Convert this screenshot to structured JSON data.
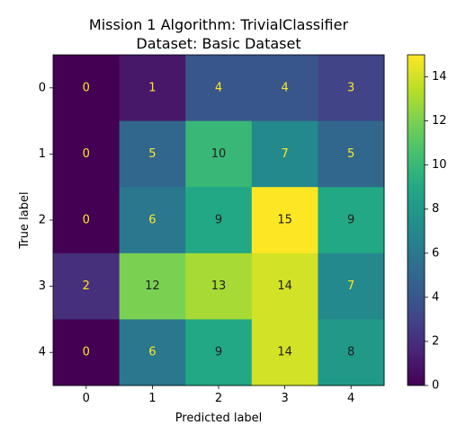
{
  "chart_data": {
    "type": "heatmap",
    "title_line1": "Mission 1 Algorithm: TrivialClassifier",
    "title_line2": "Dataset: Basic Dataset",
    "xlabel": "Predicted label",
    "ylabel": "True label",
    "x_categories": [
      "0",
      "1",
      "2",
      "3",
      "4"
    ],
    "y_categories": [
      "0",
      "1",
      "2",
      "3",
      "4"
    ],
    "values": [
      [
        0,
        1,
        4,
        4,
        3
      ],
      [
        0,
        5,
        10,
        7,
        5
      ],
      [
        0,
        6,
        9,
        15,
        9
      ],
      [
        2,
        12,
        13,
        14,
        7
      ],
      [
        0,
        6,
        9,
        14,
        8
      ]
    ],
    "colormap": "viridis",
    "color_range": [
      0,
      15
    ],
    "colorbar_ticks": [
      "0",
      "2",
      "4",
      "6",
      "8",
      "10",
      "12",
      "14"
    ],
    "text_color_light": "#fde725",
    "text_color_dark": "#1f1f1f"
  }
}
